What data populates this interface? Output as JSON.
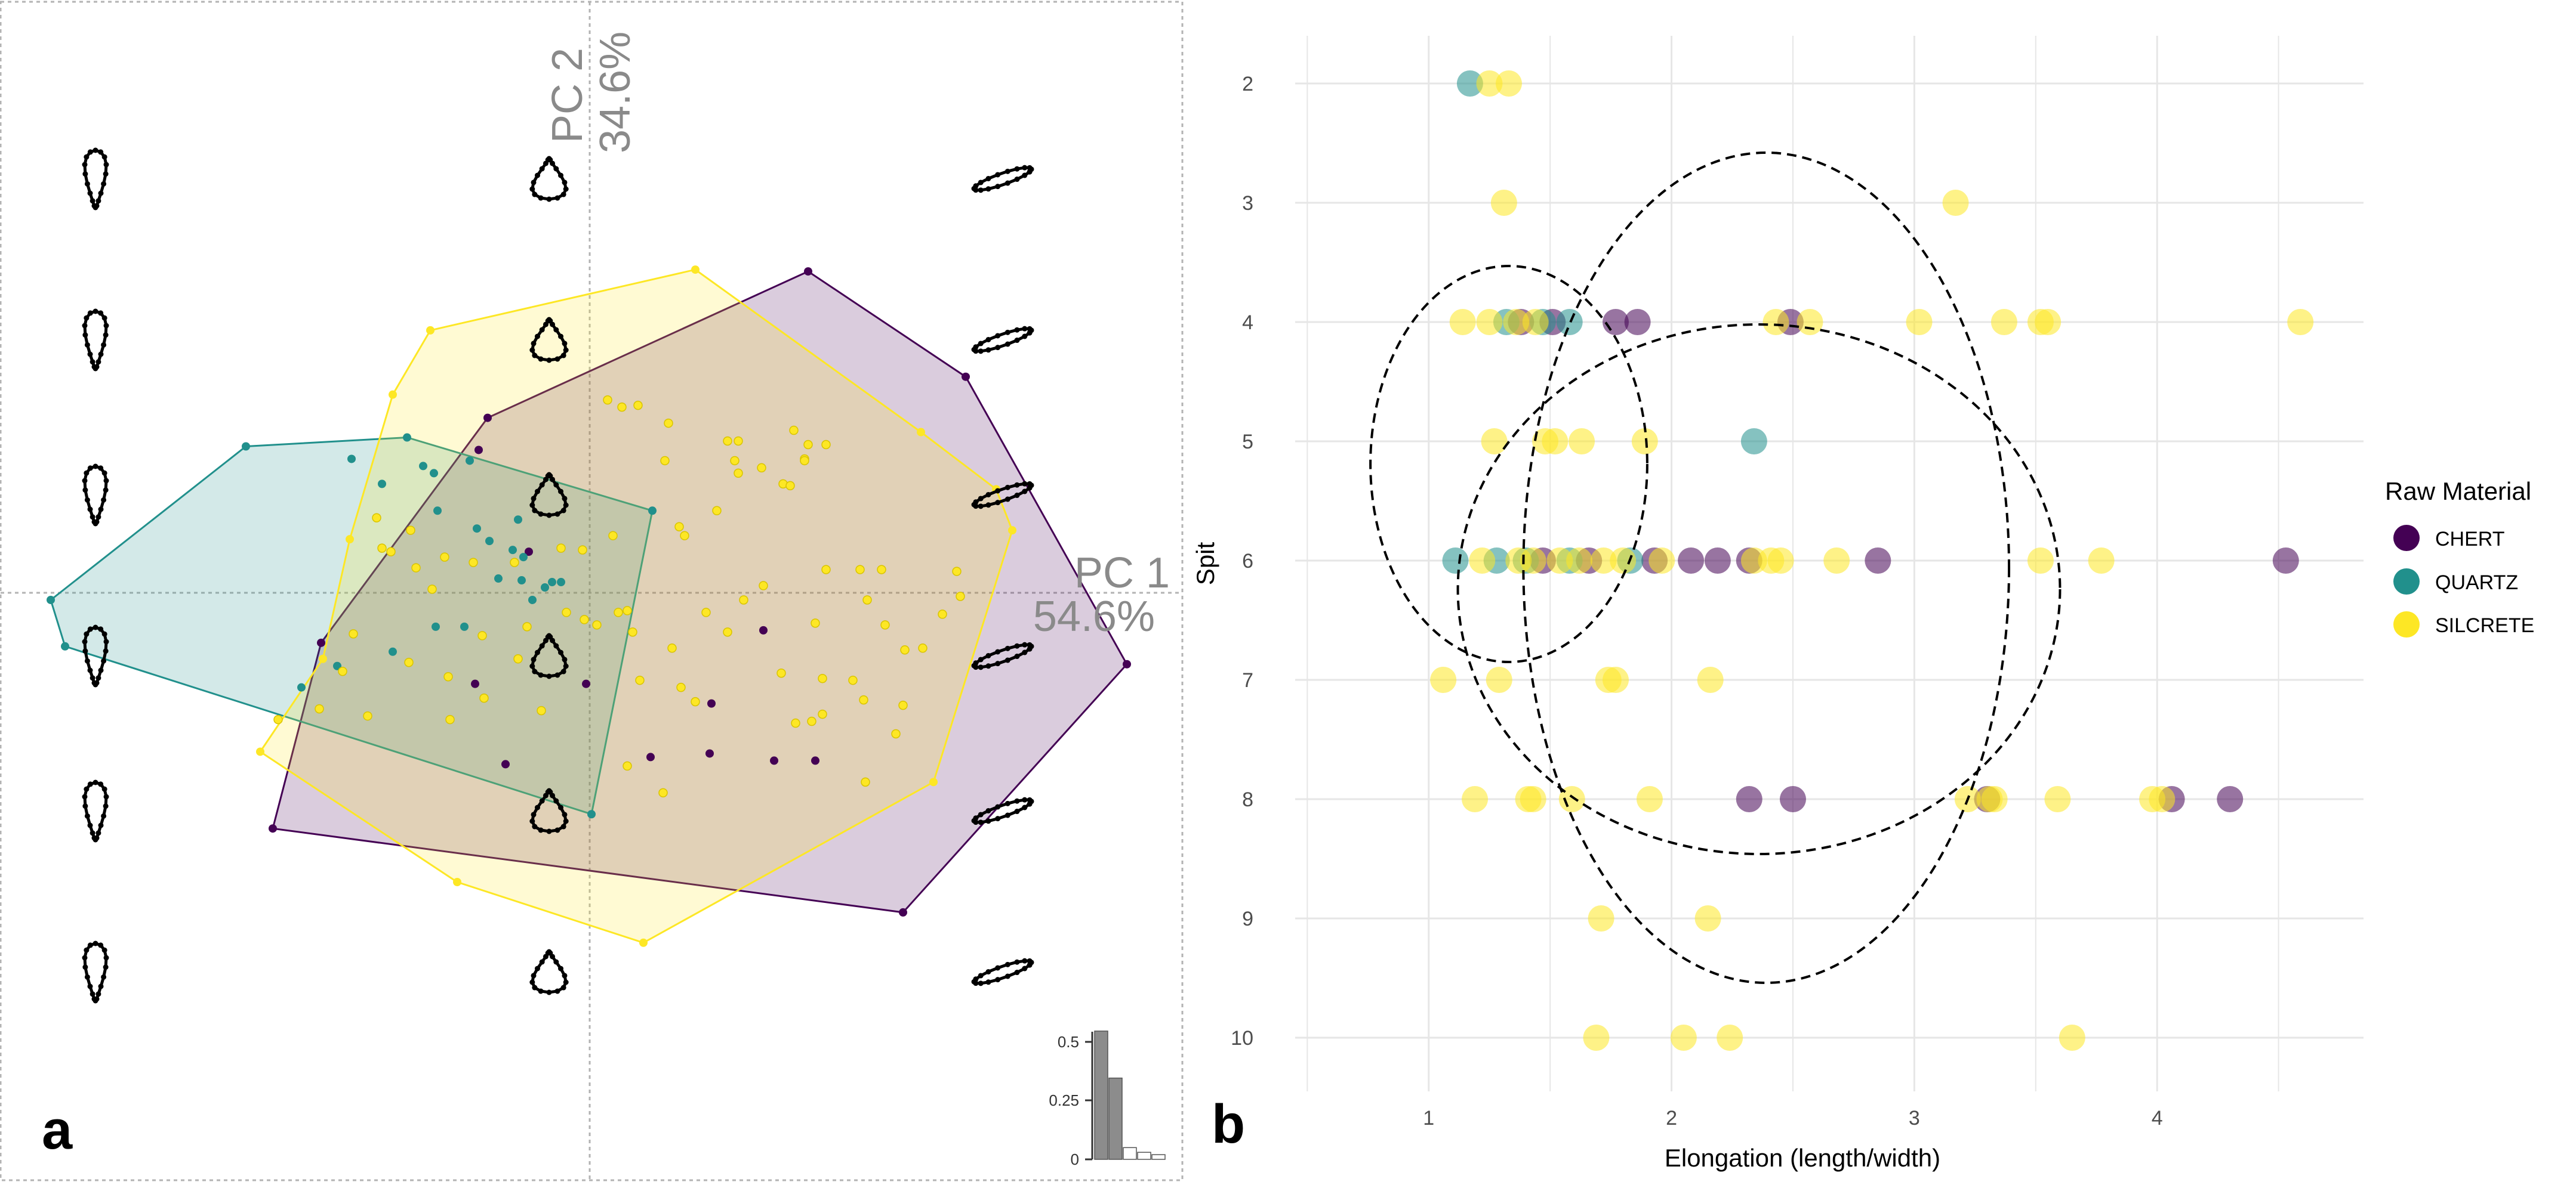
{
  "colors": {
    "chert": "#440154",
    "quartz": "#21908C",
    "silcrete": "#FDE725",
    "axis_grey": "#8a8a8a",
    "grid": "#e6e6e6",
    "bar_fill": "#8c8c8c"
  },
  "panels": {
    "a_label": "a",
    "b_label": "b"
  },
  "chart_data": [
    {
      "type": "scatter",
      "panel": "a",
      "axes": {
        "pc1_label": "PC 1",
        "pc1_percent": "54.6%",
        "pc2_label": "PC 2",
        "pc2_percent": "34.6%",
        "x_range": [
          -0.33,
          0.33
        ],
        "y_range": [
          -0.33,
          0.33
        ],
        "grid": false,
        "crosshair": true
      },
      "groups": [
        {
          "name": "CHERT",
          "hull": [
            [
              0.121,
              0.179
            ],
            [
              0.209,
              0.12
            ],
            [
              0.299,
              -0.041
            ],
            [
              0.174,
              -0.18
            ],
            [
              -0.178,
              -0.133
            ],
            [
              -0.151,
              -0.029
            ],
            [
              -0.058,
              0.097
            ]
          ],
          "points": [
            [
              -0.063,
              0.079
            ],
            [
              -0.065,
              -0.052
            ],
            [
              -0.003,
              -0.052
            ],
            [
              -0.035,
              0.022
            ],
            [
              0.067,
              -0.063
            ],
            [
              0.096,
              -0.022
            ],
            [
              0.102,
              -0.095
            ],
            [
              0.125,
              -0.095
            ],
            [
              0.033,
              -0.093
            ],
            [
              -0.048,
              -0.097
            ],
            [
              0.066,
              -0.091
            ]
          ]
        },
        {
          "name": "QUARTZ",
          "hull": [
            [
              -0.193,
              0.081
            ],
            [
              -0.103,
              0.086
            ],
            [
              0.034,
              0.045
            ],
            [
              0.0,
              -0.125
            ],
            [
              -0.294,
              -0.031
            ],
            [
              -0.302,
              -0.005
            ]
          ],
          "points": [
            [
              -0.134,
              0.074
            ],
            [
              -0.117,
              0.06
            ],
            [
              -0.094,
              0.07
            ],
            [
              -0.088,
              0.066
            ],
            [
              -0.086,
              0.045
            ],
            [
              -0.068,
              0.073
            ],
            [
              -0.057,
              0.028
            ],
            [
              -0.041,
              0.04
            ],
            [
              -0.052,
              0.007
            ],
            [
              -0.026,
              0.002
            ],
            [
              -0.017,
              0.005
            ],
            [
              -0.022,
              0.005
            ],
            [
              -0.039,
              0.006
            ],
            [
              -0.044,
              0.023
            ],
            [
              -0.087,
              -0.02
            ],
            [
              -0.111,
              -0.034
            ],
            [
              -0.162,
              -0.054
            ],
            [
              -0.142,
              -0.042
            ],
            [
              -0.071,
              -0.02
            ],
            [
              -0.033,
              -0.005
            ],
            [
              -0.038,
              0.019
            ],
            [
              -0.064,
              0.035
            ]
          ]
        },
        {
          "name": "SILCRETE",
          "hull": [
            [
              0.058,
              0.18
            ],
            [
              0.184,
              0.089
            ],
            [
              0.226,
              0.057
            ],
            [
              0.235,
              0.034
            ],
            [
              0.191,
              -0.107
            ],
            [
              0.029,
              -0.197
            ],
            [
              -0.075,
              -0.163
            ],
            [
              -0.185,
              -0.09
            ],
            [
              -0.15,
              -0.038
            ],
            [
              -0.135,
              0.029
            ],
            [
              -0.111,
              0.11
            ],
            [
              -0.09,
              0.146
            ]
          ],
          "points": [
            [
              0.009,
              0.107
            ],
            [
              0.017,
              0.103
            ],
            [
              0.026,
              0.104
            ],
            [
              0.041,
              0.073
            ],
            [
              0.043,
              0.094
            ],
            [
              0.049,
              0.036
            ],
            [
              0.052,
              0.031
            ],
            [
              0.07,
              0.045
            ],
            [
              0.076,
              0.084
            ],
            [
              0.08,
              0.073
            ],
            [
              0.082,
              0.084
            ],
            [
              0.082,
              0.066
            ],
            [
              0.095,
              0.069
            ],
            [
              0.107,
              0.06
            ],
            [
              0.111,
              0.059
            ],
            [
              0.113,
              0.09
            ],
            [
              0.119,
              0.074
            ],
            [
              0.119,
              0.073
            ],
            [
              0.121,
              0.082
            ],
            [
              0.131,
              0.082
            ],
            [
              -0.12,
              0.041
            ],
            [
              -0.117,
              0.024
            ],
            [
              -0.112,
              0.022
            ],
            [
              -0.101,
              0.034
            ],
            [
              -0.098,
              0.013
            ],
            [
              -0.089,
              0.001
            ],
            [
              -0.082,
              0.019
            ],
            [
              -0.066,
              0.016
            ],
            [
              -0.043,
              0.016
            ],
            [
              -0.017,
              0.024
            ],
            [
              -0.004,
              -0.016
            ],
            [
              0.012,
              0.031
            ],
            [
              0.015,
              -0.012
            ],
            [
              0.02,
              -0.011
            ],
            [
              0.023,
              -0.023
            ],
            [
              0.027,
              -0.05
            ],
            [
              0.045,
              -0.032
            ],
            [
              0.05,
              -0.054
            ],
            [
              0.058,
              -0.062
            ],
            [
              0.064,
              -0.012
            ],
            [
              0.076,
              -0.023
            ],
            [
              0.085,
              -0.005
            ],
            [
              0.096,
              0.003
            ],
            [
              0.106,
              -0.046
            ],
            [
              0.114,
              -0.074
            ],
            [
              0.125,
              -0.018
            ],
            [
              0.131,
              0.012
            ],
            [
              0.15,
              0.012
            ],
            [
              0.154,
              -0.005
            ],
            [
              0.164,
              -0.019
            ],
            [
              0.175,
              -0.033
            ],
            [
              0.185,
              -0.032
            ],
            [
              0.196,
              -0.013
            ],
            [
              0.204,
              0.011
            ],
            [
              0.206,
              -0.003
            ],
            [
              0.162,
              0.012
            ],
            [
              0.129,
              -0.069
            ],
            [
              0.123,
              -0.073
            ],
            [
              0.129,
              -0.049
            ],
            [
              0.146,
              -0.05
            ],
            [
              0.152,
              -0.061
            ],
            [
              0.17,
              -0.08
            ],
            [
              0.174,
              -0.064
            ],
            [
              0.153,
              -0.107
            ],
            [
              0.04,
              -0.113
            ],
            [
              0.02,
              -0.098
            ],
            [
              -0.028,
              -0.067
            ],
            [
              -0.079,
              -0.072
            ],
            [
              -0.125,
              -0.07
            ],
            [
              -0.152,
              -0.066
            ],
            [
              -0.175,
              -0.072
            ],
            [
              -0.139,
              -0.045
            ],
            [
              -0.102,
              -0.04
            ],
            [
              -0.08,
              -0.048
            ],
            [
              -0.061,
              -0.025
            ],
            [
              -0.036,
              -0.02
            ],
            [
              -0.014,
              -0.012
            ],
            [
              0.003,
              -0.019
            ],
            [
              -0.005,
              0.023
            ],
            [
              -0.041,
              -0.038
            ],
            [
              -0.06,
              -0.06
            ],
            [
              -0.133,
              -0.024
            ]
          ]
        }
      ],
      "eigen_inset": {
        "ticks": [
          "0.5",
          "0.25",
          "0"
        ],
        "tick_values": [
          0.5,
          0.25,
          0
        ],
        "values": [
          0.546,
          0.346,
          0.05,
          0.03,
          0.02
        ]
      }
    },
    {
      "type": "scatter",
      "panel": "b",
      "xlabel": "Elongation (length/width)",
      "ylabel": "Spit",
      "xlim": [
        0.45,
        4.85
      ],
      "ylim": [
        10.45,
        1.6
      ],
      "x_ticks": [
        "1",
        "2",
        "3",
        "4"
      ],
      "y_ticks": [
        "2",
        "3",
        "4",
        "5",
        "6",
        "7",
        "8",
        "9",
        "10"
      ],
      "grid": true,
      "legend": {
        "title": "Raw Material",
        "position": "right",
        "entries": [
          "CHERT",
          "QUARTZ",
          "SILCRETE"
        ]
      },
      "series": [
        {
          "name": "CHERT",
          "points": [
            [
              1.38,
              4
            ],
            [
              1.51,
              4
            ],
            [
              1.77,
              4
            ],
            [
              1.86,
              4
            ],
            [
              2.49,
              4
            ],
            [
              1.47,
              6
            ],
            [
              1.66,
              6
            ],
            [
              1.93,
              6
            ],
            [
              2.08,
              6
            ],
            [
              2.19,
              6
            ],
            [
              2.32,
              6
            ],
            [
              2.85,
              6
            ],
            [
              4.53,
              6
            ],
            [
              2.32,
              8
            ],
            [
              2.5,
              8
            ],
            [
              3.3,
              8
            ],
            [
              4.06,
              8
            ],
            [
              4.3,
              8
            ]
          ]
        },
        {
          "name": "QUARTZ",
          "points": [
            [
              1.17,
              2
            ],
            [
              1.32,
              4
            ],
            [
              1.47,
              4
            ],
            [
              1.58,
              4
            ],
            [
              2.34,
              5
            ],
            [
              1.11,
              6
            ],
            [
              1.28,
              6
            ],
            [
              1.4,
              6
            ],
            [
              1.58,
              6
            ],
            [
              1.83,
              6
            ]
          ]
        },
        {
          "name": "SILCRETE",
          "points": [
            [
              1.25,
              2
            ],
            [
              1.33,
              2
            ],
            [
              1.31,
              3
            ],
            [
              3.17,
              3
            ],
            [
              1.14,
              4
            ],
            [
              1.25,
              4
            ],
            [
              1.36,
              4
            ],
            [
              1.44,
              4
            ],
            [
              2.43,
              4
            ],
            [
              2.57,
              4
            ],
            [
              3.02,
              4
            ],
            [
              3.37,
              4
            ],
            [
              3.52,
              4
            ],
            [
              3.55,
              4
            ],
            [
              4.59,
              4
            ],
            [
              1.27,
              5
            ],
            [
              1.48,
              5
            ],
            [
              1.52,
              5
            ],
            [
              1.63,
              5
            ],
            [
              1.89,
              5
            ],
            [
              1.22,
              6
            ],
            [
              1.37,
              6
            ],
            [
              1.43,
              6
            ],
            [
              1.54,
              6
            ],
            [
              1.62,
              6
            ],
            [
              1.72,
              6
            ],
            [
              1.8,
              6
            ],
            [
              1.96,
              6
            ],
            [
              2.34,
              6
            ],
            [
              2.41,
              6
            ],
            [
              2.45,
              6
            ],
            [
              2.68,
              6
            ],
            [
              3.52,
              6
            ],
            [
              3.77,
              6
            ],
            [
              1.06,
              7
            ],
            [
              1.29,
              7
            ],
            [
              1.74,
              7
            ],
            [
              1.77,
              7
            ],
            [
              2.16,
              7
            ],
            [
              1.19,
              8
            ],
            [
              1.41,
              8
            ],
            [
              1.43,
              8
            ],
            [
              1.59,
              8
            ],
            [
              1.91,
              8
            ],
            [
              3.22,
              8
            ],
            [
              3.31,
              8
            ],
            [
              3.33,
              8
            ],
            [
              3.59,
              8
            ],
            [
              3.98,
              8
            ],
            [
              4.02,
              8
            ],
            [
              1.71,
              9
            ],
            [
              2.15,
              9
            ],
            [
              1.69,
              10
            ],
            [
              2.05,
              10
            ],
            [
              2.24,
              10
            ],
            [
              3.65,
              10
            ]
          ]
        }
      ],
      "ellipses": [
        {
          "name": "CHERT",
          "center": [
            2.39,
            6.06
          ],
          "rx": 1.0,
          "ry": 3.48,
          "angle": 0
        },
        {
          "name": "QUARTZ",
          "center": [
            1.33,
            5.19
          ],
          "rx": 0.57,
          "ry": 1.66,
          "angle": 0
        },
        {
          "name": "SILCRETE",
          "center": [
            2.36,
            6.24
          ],
          "rx": 1.24,
          "ry": 2.22,
          "angle": 0
        }
      ]
    }
  ]
}
